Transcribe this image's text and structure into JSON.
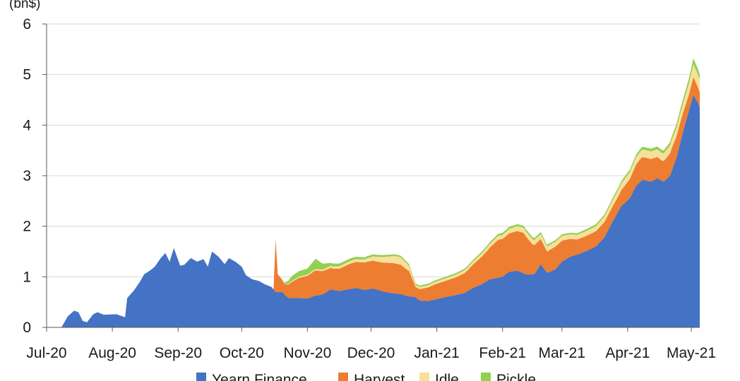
{
  "chart_data": {
    "type": "area",
    "stacked": true,
    "ylabel": "(bn$)",
    "ylim": [
      0,
      6
    ],
    "yticks": [
      "0",
      "1",
      "2",
      "3",
      "4",
      "5",
      "6"
    ],
    "xlim": [
      "2020-07-01",
      "2021-05-05"
    ],
    "xticks": [
      {
        "label": "Jul-20",
        "date": "2020-07-01"
      },
      {
        "label": "Aug-20",
        "date": "2020-08-01"
      },
      {
        "label": "Sep-20",
        "date": "2020-09-01"
      },
      {
        "label": "Oct-20",
        "date": "2020-10-01"
      },
      {
        "label": "Nov-20",
        "date": "2020-11-01"
      },
      {
        "label": "Dec-20",
        "date": "2020-12-01"
      },
      {
        "label": "Jan-21",
        "date": "2021-01-01"
      },
      {
        "label": "Feb-21",
        "date": "2021-02-01"
      },
      {
        "label": "Mar-21",
        "date": "2021-03-01"
      },
      {
        "label": "Apr-21",
        "date": "2021-04-01"
      },
      {
        "label": "May-21",
        "date": "2021-05-01"
      }
    ],
    "grid": true,
    "legend_position": "bottom",
    "series": [
      {
        "name": "Yearn Finance",
        "color": "#4472C4",
        "points": [
          [
            "2020-07-08",
            0
          ],
          [
            "2020-07-11",
            0.22
          ],
          [
            "2020-07-14",
            0.33
          ],
          [
            "2020-07-16",
            0.3
          ],
          [
            "2020-07-18",
            0.13
          ],
          [
            "2020-07-20",
            0.1
          ],
          [
            "2020-07-23",
            0.26
          ],
          [
            "2020-07-25",
            0.3
          ],
          [
            "2020-07-28",
            0.25
          ],
          [
            "2020-08-03",
            0.26
          ],
          [
            "2020-08-07",
            0.2
          ],
          [
            "2020-08-08",
            0.58
          ],
          [
            "2020-08-11",
            0.72
          ],
          [
            "2020-08-14",
            0.9
          ],
          [
            "2020-08-16",
            1.05
          ],
          [
            "2020-08-19",
            1.13
          ],
          [
            "2020-08-21",
            1.2
          ],
          [
            "2020-08-24",
            1.38
          ],
          [
            "2020-08-26",
            1.47
          ],
          [
            "2020-08-28",
            1.3
          ],
          [
            "2020-08-30",
            1.57
          ],
          [
            "2020-09-02",
            1.22
          ],
          [
            "2020-09-04",
            1.24
          ],
          [
            "2020-09-07",
            1.37
          ],
          [
            "2020-09-10",
            1.3
          ],
          [
            "2020-09-13",
            1.35
          ],
          [
            "2020-09-15",
            1.2
          ],
          [
            "2020-09-17",
            1.5
          ],
          [
            "2020-09-20",
            1.4
          ],
          [
            "2020-09-23",
            1.25
          ],
          [
            "2020-09-25",
            1.37
          ],
          [
            "2020-09-28",
            1.3
          ],
          [
            "2020-10-01",
            1.2
          ],
          [
            "2020-10-03",
            1.03
          ],
          [
            "2020-10-06",
            0.95
          ],
          [
            "2020-10-09",
            0.92
          ],
          [
            "2020-10-12",
            0.85
          ],
          [
            "2020-10-15",
            0.8
          ],
          [
            "2020-10-17",
            0.7
          ],
          [
            "2020-10-20",
            0.7
          ],
          [
            "2020-10-23",
            0.58
          ],
          [
            "2020-10-28",
            0.58
          ],
          [
            "2020-11-01",
            0.57
          ],
          [
            "2020-11-04",
            0.62
          ],
          [
            "2020-11-08",
            0.65
          ],
          [
            "2020-11-12",
            0.75
          ],
          [
            "2020-11-16",
            0.72
          ],
          [
            "2020-11-20",
            0.75
          ],
          [
            "2020-11-24",
            0.78
          ],
          [
            "2020-11-28",
            0.74
          ],
          [
            "2020-12-02",
            0.77
          ],
          [
            "2020-12-06",
            0.72
          ],
          [
            "2020-12-10",
            0.68
          ],
          [
            "2020-12-15",
            0.66
          ],
          [
            "2020-12-18",
            0.62
          ],
          [
            "2020-12-22",
            0.6
          ],
          [
            "2020-12-24",
            0.53
          ],
          [
            "2020-12-28",
            0.52
          ],
          [
            "2021-01-01",
            0.56
          ],
          [
            "2021-01-05",
            0.6
          ],
          [
            "2021-01-09",
            0.63
          ],
          [
            "2021-01-14",
            0.68
          ],
          [
            "2021-01-18",
            0.78
          ],
          [
            "2021-01-22",
            0.85
          ],
          [
            "2021-01-26",
            0.95
          ],
          [
            "2021-02-01",
            1.0
          ],
          [
            "2021-02-04",
            1.1
          ],
          [
            "2021-02-08",
            1.12
          ],
          [
            "2021-02-12",
            1.05
          ],
          [
            "2021-02-16",
            1.05
          ],
          [
            "2021-02-19",
            1.25
          ],
          [
            "2021-02-22",
            1.08
          ],
          [
            "2021-02-26",
            1.15
          ],
          [
            "2021-03-01",
            1.3
          ],
          [
            "2021-03-05",
            1.4
          ],
          [
            "2021-03-09",
            1.45
          ],
          [
            "2021-03-13",
            1.52
          ],
          [
            "2021-03-17",
            1.6
          ],
          [
            "2021-03-21",
            1.78
          ],
          [
            "2021-03-25",
            2.1
          ],
          [
            "2021-03-29",
            2.4
          ],
          [
            "2021-04-02",
            2.55
          ],
          [
            "2021-04-05",
            2.8
          ],
          [
            "2021-04-08",
            2.92
          ],
          [
            "2021-04-12",
            2.88
          ],
          [
            "2021-04-15",
            2.95
          ],
          [
            "2021-04-18",
            2.88
          ],
          [
            "2021-04-21",
            3.0
          ],
          [
            "2021-04-24",
            3.35
          ],
          [
            "2021-04-27",
            3.85
          ],
          [
            "2021-04-30",
            4.3
          ],
          [
            "2021-05-02",
            4.6
          ],
          [
            "2021-05-04",
            4.45
          ],
          [
            "2021-05-05",
            4.35
          ]
        ]
      },
      {
        "name": "Harvest",
        "color": "#ED7D31",
        "points": [
          [
            "2020-10-16",
            0
          ],
          [
            "2020-10-17",
            1.05
          ],
          [
            "2020-10-18",
            0.35
          ],
          [
            "2020-10-21",
            0.2
          ],
          [
            "2020-10-24",
            0.3
          ],
          [
            "2020-10-28",
            0.4
          ],
          [
            "2020-11-01",
            0.45
          ],
          [
            "2020-11-05",
            0.5
          ],
          [
            "2020-11-09",
            0.45
          ],
          [
            "2020-11-13",
            0.42
          ],
          [
            "2020-11-17",
            0.45
          ],
          [
            "2020-11-21",
            0.5
          ],
          [
            "2020-11-25",
            0.52
          ],
          [
            "2020-11-29",
            0.55
          ],
          [
            "2020-12-03",
            0.55
          ],
          [
            "2020-12-07",
            0.57
          ],
          [
            "2020-12-11",
            0.6
          ],
          [
            "2020-12-15",
            0.58
          ],
          [
            "2020-12-19",
            0.5
          ],
          [
            "2020-12-22",
            0.2
          ],
          [
            "2020-12-26",
            0.25
          ],
          [
            "2020-12-31",
            0.3
          ],
          [
            "2021-01-05",
            0.32
          ],
          [
            "2021-01-10",
            0.35
          ],
          [
            "2021-01-15",
            0.4
          ],
          [
            "2021-01-20",
            0.5
          ],
          [
            "2021-01-25",
            0.6
          ],
          [
            "2021-01-30",
            0.75
          ],
          [
            "2021-02-03",
            0.75
          ],
          [
            "2021-02-07",
            0.78
          ],
          [
            "2021-02-11",
            0.8
          ],
          [
            "2021-02-15",
            0.6
          ],
          [
            "2021-02-19",
            0.5
          ],
          [
            "2021-02-22",
            0.42
          ],
          [
            "2021-02-26",
            0.45
          ],
          [
            "2021-03-02",
            0.4
          ],
          [
            "2021-03-08",
            0.3
          ],
          [
            "2021-03-13",
            0.3
          ],
          [
            "2021-03-18",
            0.3
          ],
          [
            "2021-03-23",
            0.3
          ],
          [
            "2021-03-28",
            0.3
          ],
          [
            "2021-04-02",
            0.38
          ],
          [
            "2021-04-07",
            0.45
          ],
          [
            "2021-04-12",
            0.45
          ],
          [
            "2021-04-17",
            0.4
          ],
          [
            "2021-04-22",
            0.45
          ],
          [
            "2021-04-26",
            0.4
          ],
          [
            "2021-04-30",
            0.32
          ],
          [
            "2021-05-02",
            0.35
          ],
          [
            "2021-05-05",
            0.3
          ]
        ]
      },
      {
        "name": "Idle",
        "color": "#F8E09A",
        "points": [
          [
            "2020-10-20",
            0
          ],
          [
            "2020-10-24",
            0.02
          ],
          [
            "2020-11-08",
            0.03
          ],
          [
            "2020-11-18",
            0.05
          ],
          [
            "2020-11-28",
            0.06
          ],
          [
            "2020-12-08",
            0.12
          ],
          [
            "2020-12-14",
            0.15
          ],
          [
            "2020-12-18",
            0.12
          ],
          [
            "2020-12-22",
            0.04
          ],
          [
            "2021-01-05",
            0.05
          ],
          [
            "2021-01-20",
            0.06
          ],
          [
            "2021-02-01",
            0.08
          ],
          [
            "2021-02-10",
            0.1
          ],
          [
            "2021-02-20",
            0.1
          ],
          [
            "2021-03-05",
            0.09
          ],
          [
            "2021-03-18",
            0.1
          ],
          [
            "2021-03-28",
            0.13
          ],
          [
            "2021-04-08",
            0.15
          ],
          [
            "2021-04-18",
            0.15
          ],
          [
            "2021-04-27",
            0.18
          ],
          [
            "2021-05-02",
            0.25
          ],
          [
            "2021-05-05",
            0.25
          ]
        ]
      },
      {
        "name": "Pickle",
        "color": "#92D050",
        "points": [
          [
            "2020-10-20",
            0
          ],
          [
            "2020-10-25",
            0.1
          ],
          [
            "2020-11-01",
            0.12
          ],
          [
            "2020-11-05",
            0.2
          ],
          [
            "2020-11-08",
            0.12
          ],
          [
            "2020-11-12",
            0.06
          ],
          [
            "2020-11-20",
            0.05
          ],
          [
            "2020-12-01",
            0.04
          ],
          [
            "2020-12-20",
            0.03
          ],
          [
            "2021-01-10",
            0.03
          ],
          [
            "2021-02-01",
            0.04
          ],
          [
            "2021-02-15",
            0.04
          ],
          [
            "2021-03-05",
            0.03
          ],
          [
            "2021-03-20",
            0.04
          ],
          [
            "2021-04-05",
            0.05
          ],
          [
            "2021-04-20",
            0.06
          ],
          [
            "2021-04-30",
            0.1
          ],
          [
            "2021-05-02",
            0.12
          ],
          [
            "2021-05-05",
            0.1
          ]
        ]
      }
    ]
  }
}
